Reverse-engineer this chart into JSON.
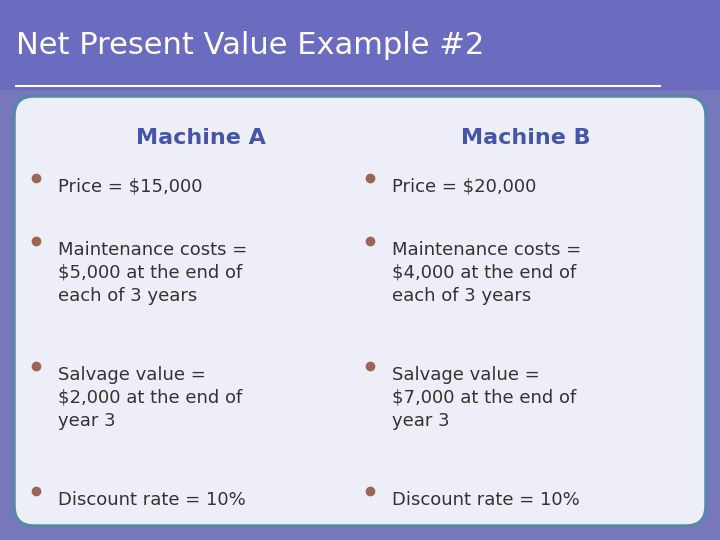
{
  "title": "Net Present Value Example #2",
  "title_bg_color": "#6B6BBF",
  "title_text_color": "#FFFFFF",
  "title_underline_color": "#FFFFFF",
  "header_A": "Machine A",
  "header_B": "Machine B",
  "header_color": "#4455AA",
  "bullet_color": "#996655",
  "text_color": "#333333",
  "box_border_color": "#5588AA",
  "box_bg_color": "#EEEEF8",
  "outer_bg_color": "#7777BB",
  "machine_A_bullets": [
    "Price = $15,000",
    "Maintenance costs =\n$5,000 at the end of\neach of 3 years",
    "Salvage value =\n$2,000 at the end of\nyear 3",
    "Discount rate = 10%"
  ],
  "machine_B_bullets": [
    "Price = $20,000",
    "Maintenance costs =\n$4,000 at the end of\neach of 3 years",
    "Salvage value =\n$7,000 at the end of\nyear 3",
    "Discount rate = 10%"
  ],
  "title_fontsize": 22,
  "header_fontsize": 16,
  "body_fontsize": 13
}
